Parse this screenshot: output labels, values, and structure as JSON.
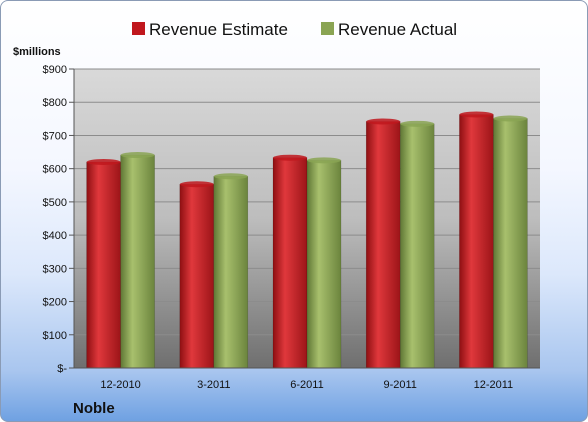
{
  "chart_data": {
    "type": "bar",
    "ylabel": "$millions",
    "categories": [
      "12-2010",
      "3-2011",
      "6-2011",
      "9-2011",
      "12-2011"
    ],
    "series": [
      {
        "name": "Revenue Estimate",
        "color": "#c0171d",
        "values": [
          620,
          553,
          633,
          742,
          763
        ]
      },
      {
        "name": "Revenue Actual",
        "color": "#8aa453",
        "values": [
          641,
          577,
          625,
          735,
          751
        ]
      }
    ],
    "ylim": [
      0,
      900
    ],
    "yticks": [
      "$-",
      "$100",
      "$200",
      "$300",
      "$400",
      "$500",
      "$600",
      "$700",
      "$800",
      "$900"
    ],
    "grid": true,
    "legend_position": "top"
  },
  "footer": {
    "company": "Noble"
  }
}
